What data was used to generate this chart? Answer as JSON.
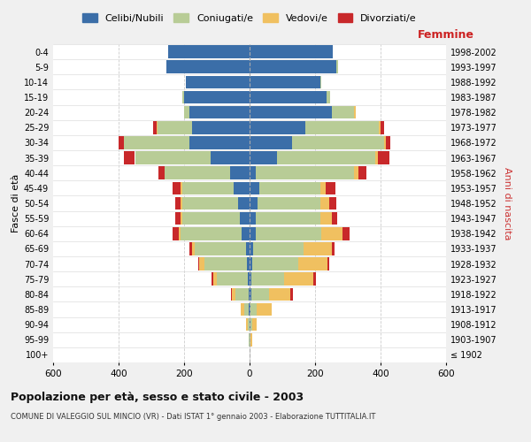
{
  "age_groups": [
    "100+",
    "95-99",
    "90-94",
    "85-89",
    "80-84",
    "75-79",
    "70-74",
    "65-69",
    "60-64",
    "55-59",
    "50-54",
    "45-49",
    "40-44",
    "35-39",
    "30-34",
    "25-29",
    "20-24",
    "15-19",
    "10-14",
    "5-9",
    "0-4"
  ],
  "birth_years": [
    "≤ 1902",
    "1903-1907",
    "1908-1912",
    "1913-1917",
    "1918-1922",
    "1923-1927",
    "1928-1932",
    "1933-1937",
    "1938-1942",
    "1943-1947",
    "1948-1952",
    "1953-1957",
    "1958-1962",
    "1963-1967",
    "1968-1972",
    "1973-1977",
    "1978-1982",
    "1983-1987",
    "1988-1992",
    "1993-1997",
    "1998-2002"
  ],
  "males": {
    "celibi": [
      0,
      0,
      0,
      2,
      3,
      5,
      8,
      12,
      25,
      30,
      35,
      50,
      60,
      120,
      185,
      175,
      185,
      200,
      195,
      255,
      250
    ],
    "coniugati": [
      0,
      2,
      5,
      15,
      40,
      95,
      130,
      155,
      185,
      175,
      170,
      155,
      200,
      230,
      200,
      105,
      15,
      5,
      0,
      0,
      0
    ],
    "vedovi": [
      0,
      2,
      5,
      10,
      10,
      10,
      15,
      10,
      5,
      5,
      5,
      5,
      0,
      0,
      0,
      5,
      0,
      0,
      0,
      0,
      0
    ],
    "divorziati": [
      0,
      0,
      0,
      0,
      5,
      5,
      5,
      8,
      20,
      18,
      18,
      25,
      18,
      35,
      15,
      10,
      0,
      0,
      0,
      0,
      0
    ]
  },
  "females": {
    "nubili": [
      0,
      0,
      2,
      2,
      5,
      5,
      8,
      10,
      20,
      20,
      25,
      30,
      20,
      85,
      130,
      170,
      250,
      235,
      215,
      265,
      255
    ],
    "coniugate": [
      0,
      2,
      5,
      20,
      55,
      100,
      140,
      155,
      200,
      195,
      190,
      185,
      300,
      300,
      280,
      225,
      70,
      10,
      5,
      5,
      0
    ],
    "vedove": [
      0,
      5,
      15,
      45,
      65,
      90,
      90,
      85,
      65,
      35,
      28,
      18,
      12,
      8,
      5,
      5,
      5,
      0,
      0,
      0,
      0
    ],
    "divorziate": [
      0,
      0,
      0,
      0,
      8,
      8,
      5,
      10,
      20,
      18,
      22,
      30,
      25,
      35,
      15,
      10,
      0,
      0,
      0,
      0,
      0
    ]
  },
  "colors": {
    "celibi": "#3b6ea8",
    "coniugati": "#b8cc96",
    "vedovi": "#f0c060",
    "divorziati": "#c8282a"
  },
  "title": "Popolazione per età, sesso e stato civile - 2003",
  "subtitle": "COMUNE DI VALEGGIO SUL MINCIO (VR) - Dati ISTAT 1° gennaio 2003 - Elaborazione TUTTITALIA.IT",
  "xlabel_right": "Femmine",
  "ylabel_left": "Fasce di età",
  "ylabel_right": "Anni di nascita",
  "xlim": 600,
  "legend_labels": [
    "Celibi/Nubili",
    "Coniugati/e",
    "Vedovi/e",
    "Divorziati/e"
  ],
  "bg_color": "#f0f0f0",
  "plot_bg_color": "#ffffff"
}
